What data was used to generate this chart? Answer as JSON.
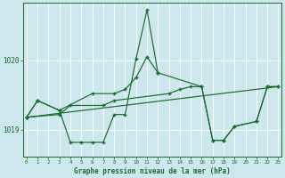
{
  "title": "Graphe pression niveau de la mer (hPa)",
  "background_color": "#cce8ee",
  "grid_color": "#ffffff",
  "line_color": "#1a6b2a",
  "x_ticks": [
    0,
    1,
    2,
    3,
    4,
    5,
    6,
    7,
    8,
    9,
    10,
    11,
    12,
    13,
    14,
    15,
    16,
    17,
    18,
    19,
    20,
    21,
    22,
    23
  ],
  "y_ticks": [
    1019,
    1020
  ],
  "ylim": [
    1018.62,
    1020.82
  ],
  "xlim": [
    -0.3,
    23.3
  ],
  "line1_x": [
    0,
    1,
    3,
    4,
    5,
    6,
    7,
    8,
    9,
    10,
    11,
    12,
    16,
    17,
    18,
    19,
    21,
    22,
    23
  ],
  "line1_y": [
    1019.18,
    1019.42,
    1019.28,
    1018.82,
    1018.82,
    1018.82,
    1018.82,
    1019.22,
    1019.22,
    1020.02,
    1020.72,
    1019.82,
    1019.62,
    1018.85,
    1018.85,
    1019.05,
    1019.12,
    1019.62,
    1019.62
  ],
  "line2_x": [
    0,
    3,
    4,
    7,
    8,
    13,
    14,
    15,
    16,
    17,
    18,
    19,
    21,
    22,
    23
  ],
  "line2_y": [
    1019.18,
    1019.22,
    1019.35,
    1019.35,
    1019.42,
    1019.52,
    1019.58,
    1019.62,
    1019.62,
    1018.85,
    1018.85,
    1019.05,
    1019.12,
    1019.62,
    1019.62
  ],
  "line3_x": [
    0,
    23
  ],
  "line3_y": [
    1019.18,
    1019.62
  ],
  "line4_x": [
    0,
    1,
    3,
    6,
    8,
    9,
    10,
    11,
    12
  ],
  "line4_y": [
    1019.18,
    1019.42,
    1019.28,
    1019.52,
    1019.52,
    1019.58,
    1019.75,
    1020.05,
    1019.82
  ]
}
